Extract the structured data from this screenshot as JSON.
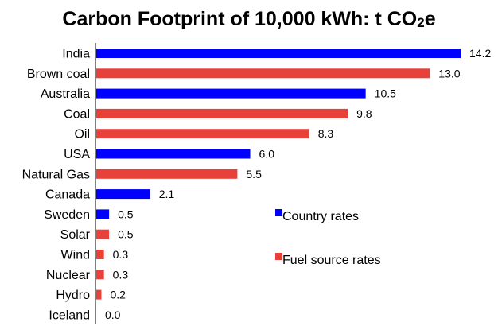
{
  "chart_data": {
    "type": "bar",
    "orientation": "horizontal",
    "title_main": "Carbon Footprint of 10,000 kWh: t CO",
    "title_sub": "2",
    "title_end": "e",
    "categories": [
      "India",
      "Brown coal",
      "Australia",
      "Coal",
      "Oil",
      "USA",
      "Natural Gas",
      "Canada",
      "Sweden",
      "Solar",
      "Wind",
      "Nuclear",
      "Hydro",
      "Iceland"
    ],
    "values": [
      14.2,
      13.0,
      10.5,
      9.8,
      8.3,
      6.0,
      5.5,
      2.1,
      0.5,
      0.5,
      0.3,
      0.3,
      0.2,
      0.0
    ],
    "value_labels": [
      "14.2",
      "13.0",
      "10.5",
      "9.8",
      "8.3",
      "6.0",
      "5.5",
      "2.1",
      "0.5",
      "0.5",
      "0.3",
      "0.3",
      "0.2",
      "0.0"
    ],
    "groups": [
      "country",
      "fuel",
      "country",
      "fuel",
      "fuel",
      "country",
      "fuel",
      "country",
      "country",
      "fuel",
      "fuel",
      "fuel",
      "fuel",
      "country"
    ],
    "colors": {
      "country": "#0000ff",
      "fuel": "#e8413a"
    },
    "legend": [
      {
        "group": "country",
        "label": "Country rates"
      },
      {
        "group": "fuel",
        "label": "Fuel source rates"
      }
    ],
    "xlim": [
      0,
      14.2
    ],
    "grid": false,
    "legend_placement": "right-center"
  }
}
